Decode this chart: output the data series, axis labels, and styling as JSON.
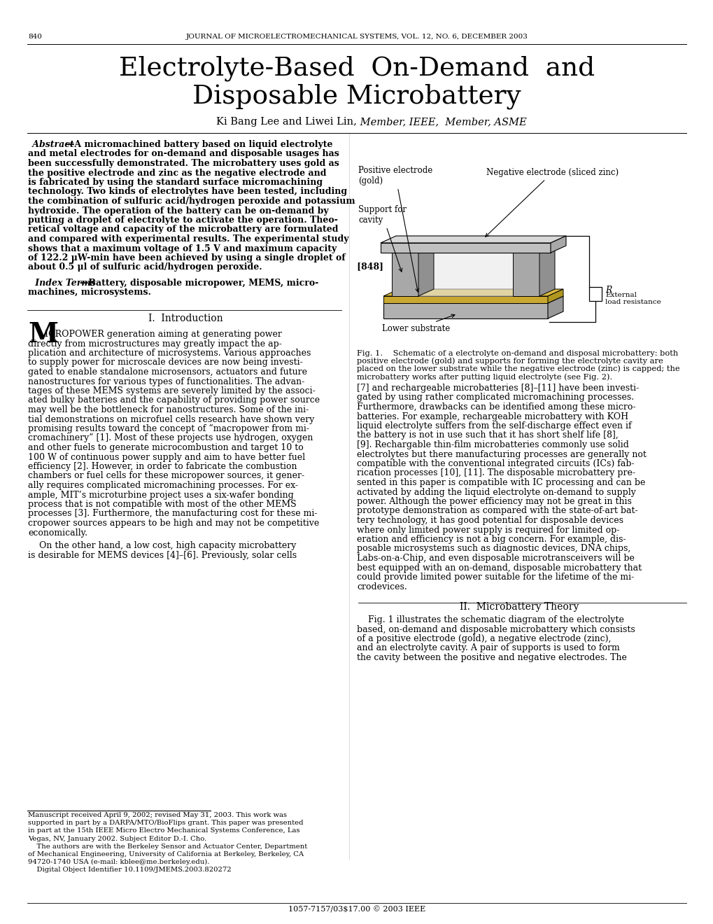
{
  "page_number": "840",
  "journal_header": "JOURNAL OF MICROELECTROMECHANICAL SYSTEMS, VOL. 12, NO. 6, DECEMBER 2003",
  "title_line1": "Electrolyte-Based  On-Demand  and",
  "title_line2": "Disposable Microbattery",
  "authors_normal": "Ki Bang Lee and Liwei Lin,",
  "authors_italic": " Member, IEEE,  Member, ASME",
  "doi_text": "1057-7157/03$17.00 © 2003 IEEE",
  "background_color": "#ffffff",
  "text_color": "#000000",
  "abs_lines": [
    "—A micromachined battery based on liquid electrolyte",
    "and metal electrodes for on-demand and disposable usages has",
    "been successfully demonstrated. The microbattery uses gold as",
    "the positive electrode and zinc as the negative electrode and",
    "is fabricated by using the standard surface micromachining",
    "technology. Two kinds of electrolytes have been tested, including",
    "the combination of sulfuric acid/hydrogen peroxide and potassium",
    "hydroxide. The operation of the battery can be on-demand by",
    "putting a droplet of electrolyte to activate the operation. Theo-",
    "retical voltage and capacity of the microbattery are formulated",
    "and compared with experimental results. The experimental study",
    "shows that a maximum voltage of 1.5 V and maximum capacity",
    "of 122.2 μW-min have been achieved by using a single droplet of",
    "about 0.5 μl of sulfuric acid/hydrogen peroxide.                               [848]"
  ],
  "index_line1": "—Battery, disposable micropower, MEMS, micro-",
  "index_line2": "machines, microsystems.",
  "intro_lines": [
    "ICROPOWER generation aiming at generating power",
    "directly from microstructures may greatly impact the ap-",
    "plication and architecture of microsystems. Various approaches",
    "to supply power for microscale devices are now being investi-",
    "gated to enable standalone microsensors, actuators and future",
    "nanostructures for various types of functionalities. The advan-",
    "tages of these MEMS systems are severely limited by the associ-",
    "ated bulky batteries and the capability of providing power source",
    "may well be the bottleneck for nanostructures. Some of the ini-",
    "tial demonstrations on microfuel cells research have shown very",
    "promising results toward the concept of “macropower from mi-",
    "cromachinery” [1]. Most of these projects use hydrogen, oxygen",
    "and other fuels to generate microcombustion and target 10 to",
    "100 W of continuous power supply and aim to have better fuel",
    "efficiency [2]. However, in order to fabricate the combustion",
    "chambers or fuel cells for these micropower sources, it gener-",
    "ally requires complicated micromachining processes. For ex-",
    "ample, MIT’s microturbine project uses a six-wafer bonding",
    "process that is not compatible with most of the other MEMS",
    "processes [3]. Furthermore, the manufacturing cost for these mi-",
    "cropower sources appears to be high and may not be competitive",
    "economically."
  ],
  "intro_para2": [
    "    On the other hand, a low cost, high capacity microbattery",
    "is desirable for MEMS devices [4]–[6]. Previously, solar cells"
  ],
  "footnote_lines": [
    "Manuscript received April 9, 2002; revised May 31, 2003. This work was",
    "supported in part by a DARPA/MTO/BioFlips grant. This paper was presented",
    "in part at the 15th IEEE Micro Electro Mechanical Systems Conference, Las",
    "Vegas, NV, January 2002. Subject Editor D.-I. Cho.",
    "    The authors are with the Berkeley Sensor and Actuator Center, Department",
    "of Mechanical Engineering, University of California at Berkeley, Berkeley, CA",
    "94720-1740 USA (e-mail: kblee@me.berkeley.edu).",
    "    Digital Object Identifier 10.1109/JMEMS.2003.820272"
  ],
  "cap_lines": [
    "Fig. 1.    Schematic of a electrolyte on-demand and disposal microbattery: both",
    "positive electrode (gold) and supports for forming the electrolyte cavity are",
    "placed on the lower substrate while the negative electrode (zinc) is capped; the",
    "microbattery works after putting liquid electrolyte (see Fig. 2)."
  ],
  "right_lines": [
    "[7] and rechargeable microbatteries [8]–[11] have been investi-",
    "gated by using rather complicated micromachining processes.",
    "Furthermore, drawbacks can be identified among these micro-",
    "batteries. For example, rechargeable microbattery with KOH",
    "liquid electrolyte suffers from the self-discharge effect even if",
    "the battery is not in use such that it has short shelf life [8],",
    "[9]. Rechargable thin-film microbatteries commonly use solid",
    "electrolytes but there manufacturing processes are generally not",
    "compatible with the conventional integrated circuits (ICs) fab-",
    "rication processes [10], [11]. The disposable microbattery pre-",
    "sented in this paper is compatible with IC processing and can be",
    "activated by adding the liquid electrolyte on-demand to supply",
    "power. Although the power efficiency may not be great in this",
    "prototype demonstration as compared with the state-of-art bat-",
    "tery technology, it has good potential for disposable devices",
    "where only limited power supply is required for limited op-",
    "eration and efficiency is not a big concern. For example, dis-",
    "posable microsystems such as diagnostic devices, DNA chips,",
    "Labs-on-a-Chip, and even disposable microtransceivers will be",
    "best equipped with an on-demand, disposable microbattery that",
    "could provide limited power suitable for the lifetime of the mi-",
    "crodevices."
  ],
  "sec2_lines": [
    "    Fig. 1 illustrates the schematic diagram of the electrolyte",
    "based, on-demand and disposable microbattery which consists",
    "of a positive electrode (gold), a negative electrode (zinc),",
    "and an electrolyte cavity. A pair of supports is used to form",
    "the cavity between the positive and negative electrodes. The"
  ]
}
